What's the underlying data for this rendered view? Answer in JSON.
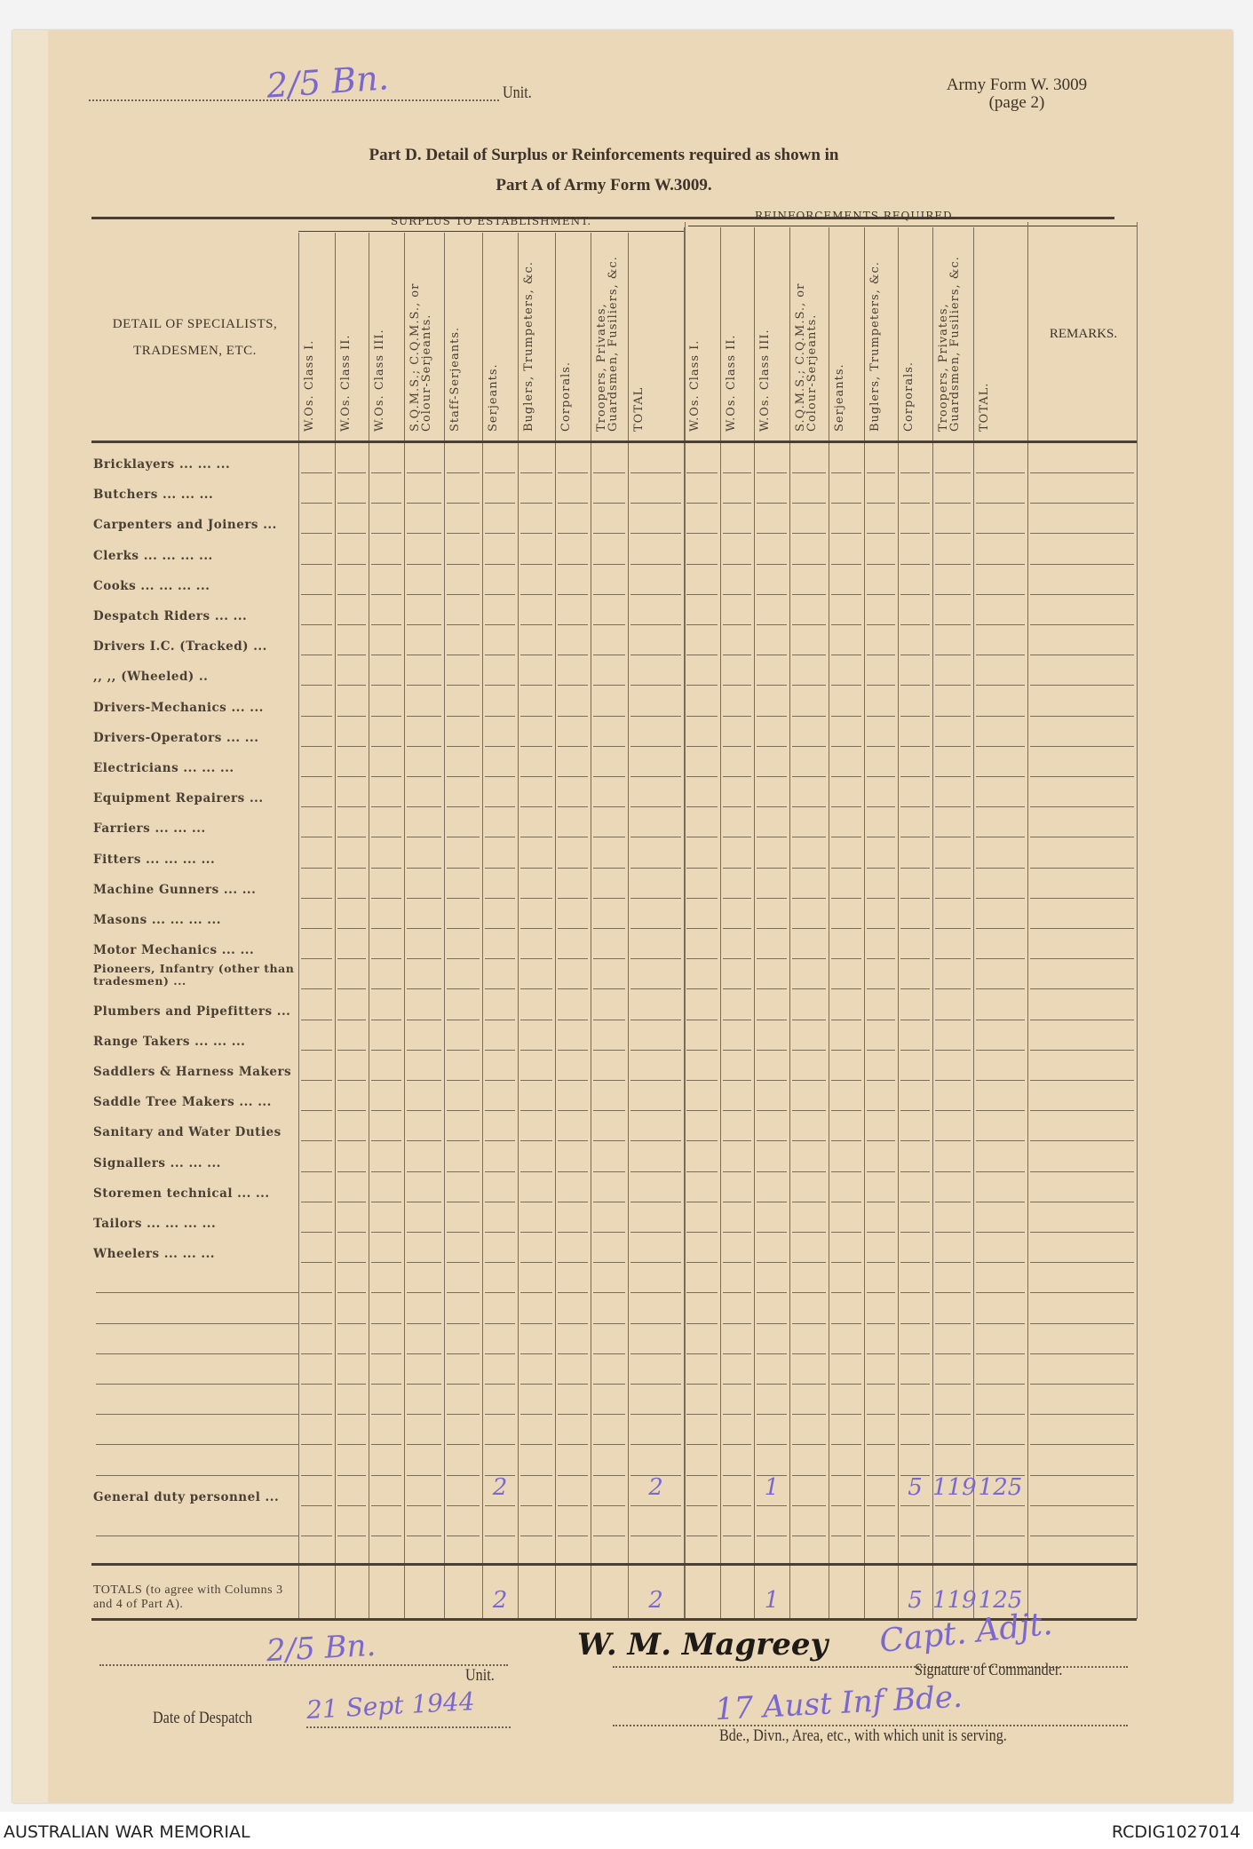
{
  "header": {
    "unit_value": "2/5 Bn.",
    "unit_label": "Unit.",
    "form_id": "Army Form W. 3009",
    "form_page": "(page 2)",
    "title_line1": "Part D.  Detail of Surplus or Reinforcements required as shown in",
    "title_line2": "Part A of Army Form W.3009."
  },
  "table": {
    "detail_header_line1": "DETAIL OF SPECIALISTS,",
    "detail_header_line2": "TRADESMEN, ETC.",
    "surplus_group": "SURPLUS TO ESTABLISHMENT.",
    "reinforcements_group": "REINFORCEMENTS  REQUIRED.",
    "remarks_header": "REMARKS.",
    "surplus_columns": [
      "W.Os. Class I.",
      "W.Os. Class II.",
      "W.Os. Class III.",
      "S.Q.M.S.; C.Q.M.S., or Colour-Serjeants.",
      "Staff-Serjeants.",
      "Serjeants.",
      "Buglers, Trumpeters, &c.",
      "Corporals.",
      "Troopers, Privates, Guardsmen, Fusiliers, &c.",
      "TOTAL"
    ],
    "reinforcement_columns": [
      "W.Os. Class I.",
      "W.Os. Class II.",
      "W.Os. Class III.",
      "S.Q.M.S.; C.Q.M.S., or Colour-Serjeants.",
      "Serjeants.",
      "Buglers, Trumpeters, &c.",
      "Corporals.",
      "Troopers, Privates, Guardsmen, Fusiliers, &c.",
      "TOTAL."
    ],
    "rows": [
      {
        "label": "Bricklayers    ...     ...     ..."
      },
      {
        "label": "Butchers       ...     ...     ..."
      },
      {
        "label": "Carpenters and Joiners  ..."
      },
      {
        "label": "Clerks   ...    ...    ...    ..."
      },
      {
        "label": "Cooks    ...    ...    ...    ..."
      },
      {
        "label": "Despatch  Riders    ...    ..."
      },
      {
        "label": "Drivers I.C. (Tracked)    ..."
      },
      {
        "label": "   ,,     ,,  (Wheeled)    .."
      },
      {
        "label": "Drivers-Mechanics   ...    ..."
      },
      {
        "label": "Drivers-Operators   ...    ..."
      },
      {
        "label": "Electricians   ...    ...   ..."
      },
      {
        "label": "Equipment Repairers      ..."
      },
      {
        "label": "Farriers      ...    ...    ..."
      },
      {
        "label": "Fitters   ...    ...    ...  ..."
      },
      {
        "label": "Machine Gunners    ...    ..."
      },
      {
        "label": "Masons   ...    ...    ...  ..."
      },
      {
        "label": "Motor Mechanics     ...   ..."
      },
      {
        "label": "Pioneers, Infantry (other than tradesmen) ..."
      },
      {
        "label": "Plumbers and Pipefitters ..."
      },
      {
        "label": "Range Takers ...    ...   ..."
      },
      {
        "label": "Saddlers & Harness Makers"
      },
      {
        "label": "Saddle Tree Makers ...  ..."
      },
      {
        "label": "Sanitary and Water Duties"
      },
      {
        "label": "Signallers    ...    ...   ..."
      },
      {
        "label": "Storemen technical  ...  ..."
      },
      {
        "label": "Tailors   ...    ...    ...  ..."
      },
      {
        "label": "Wheelers    ...    ...    ..."
      },
      {
        "label": ""
      },
      {
        "label": ""
      },
      {
        "label": ""
      },
      {
        "label": ""
      },
      {
        "label": ""
      },
      {
        "label": ""
      },
      {
        "label": ""
      },
      {
        "label": "General duty personnel  ...",
        "surplus": {
          "5": "2",
          "9": "2"
        },
        "reinforcements": {
          "2": "1",
          "6": "5",
          "7": "119",
          "8": "125"
        }
      },
      {
        "label": ""
      }
    ],
    "totals": {
      "label": "TOTALS (to agree with Columns 3 and 4 of Part A).",
      "surplus": {
        "5": "2",
        "9": "2"
      },
      "reinforcements": {
        "2": "1",
        "6": "5",
        "7": "119",
        "8": "125"
      }
    }
  },
  "footer_form": {
    "unit_value": "2/5 Bn.",
    "unit_label": "Unit.",
    "signature": "W. M. Magreey",
    "rank": "Capt. Adjt.",
    "signature_label": "Signature of Commander.",
    "date_label": "Date of Despatch",
    "date_value": "21 Sept 1944",
    "formation_value": "17 Aust Inf Bde.",
    "formation_label": "Bde., Divn., Area, etc., with which unit is serving."
  },
  "credits": {
    "left": "AUSTRALIAN WAR MEMORIAL",
    "right": "RCDIG1027014"
  },
  "colors": {
    "paper": "#ead8b8",
    "ink": "#7a68cf",
    "print": "#3d3328"
  }
}
